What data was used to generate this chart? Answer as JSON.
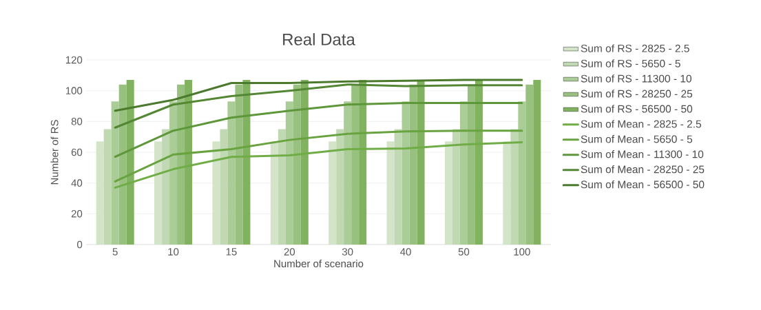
{
  "chart_data": {
    "type": "bar",
    "title": "Real Data",
    "xlabel": "Number of scenario",
    "ylabel": "Number of RS",
    "categories": [
      "5",
      "10",
      "15",
      "20",
      "30",
      "40",
      "50",
      "100"
    ],
    "ylim": [
      0,
      120
    ],
    "yticks": [
      0,
      20,
      40,
      60,
      80,
      100,
      120
    ],
    "grid": "y",
    "legend": "right",
    "line_style": "solid",
    "series": [
      {
        "name": "Sum of RS - 2825 - 2.5",
        "color": "#d3e4c9",
        "values": [
          67,
          67,
          67,
          67,
          67,
          67,
          67,
          67
        ]
      },
      {
        "name": "Sum of RS - 5650 - 5",
        "color": "#c1d9b3",
        "values": [
          75,
          75,
          75,
          75,
          75,
          75,
          75,
          75
        ]
      },
      {
        "name": "Sum of RS - 11300 - 10",
        "color": "#aacc96",
        "values": [
          93,
          93,
          93,
          93,
          93,
          93,
          93,
          93
        ]
      },
      {
        "name": "Sum of RS - 28250 - 25",
        "color": "#98c180",
        "values": [
          104,
          104,
          104,
          104,
          104,
          104,
          104,
          104
        ]
      },
      {
        "name": "Sum of RS - 56500 - 50",
        "color": "#80b25f",
        "values": [
          107,
          107,
          107,
          107,
          107,
          107,
          107,
          107
        ]
      },
      {
        "name": "Sum of Mean - 2825 - 2.5",
        "type": "line",
        "color": "#70ad47",
        "values": [
          37,
          49,
          57,
          58,
          62,
          62.5,
          65,
          66.5
        ]
      },
      {
        "name": "Sum of Mean - 5650 - 5",
        "type": "line",
        "color": "#68a340",
        "values": [
          41,
          58.5,
          62,
          68,
          72,
          73.5,
          74,
          74
        ]
      },
      {
        "name": "Sum of Mean - 11300 - 10",
        "type": "line",
        "color": "#5e963a",
        "values": [
          57,
          74,
          82.5,
          87,
          91,
          92,
          92,
          92
        ]
      },
      {
        "name": "Sum of Mean - 28250 - 25",
        "type": "line",
        "color": "#548734",
        "values": [
          76,
          91,
          96.5,
          100,
          104,
          103,
          103.5,
          103.5
        ]
      },
      {
        "name": "Sum of Mean - 56500 - 50",
        "type": "line",
        "color": "#4b7a2d",
        "values": [
          87,
          94,
          105,
          105,
          106,
          106.5,
          107,
          107
        ]
      }
    ]
  }
}
